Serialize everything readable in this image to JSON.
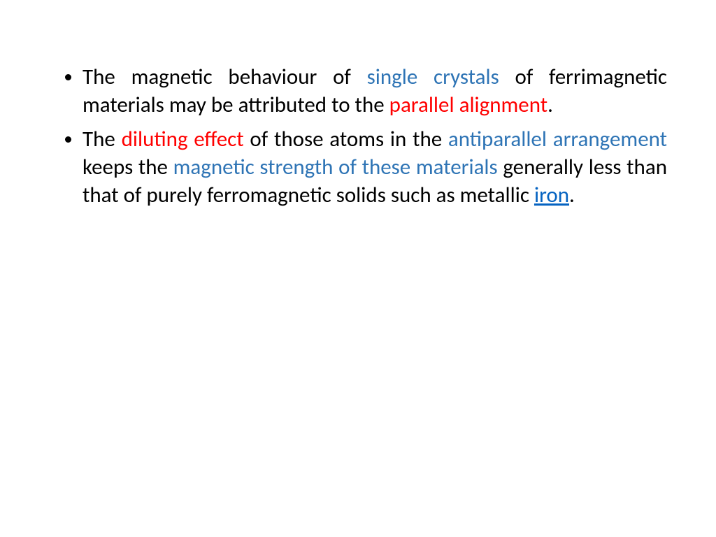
{
  "slide": {
    "background_color": "#ffffff",
    "font_family": "Calibri",
    "bullet_color": "#000000",
    "text_color": "#000000",
    "accent_blue": "#2e74b5",
    "accent_red": "#ff0000",
    "link_color": "#0563c1",
    "font_size_pt": 24,
    "text_align": "justify",
    "items": [
      {
        "runs": [
          {
            "text": "The magnetic behaviour of ",
            "color": "#000000"
          },
          {
            "text": "single crystals ",
            "color": "#2e74b5"
          },
          {
            "text": "of ferrimagnetic materials may be attributed to the ",
            "color": "#000000"
          },
          {
            "text": "parallel alignment",
            "color": "#ff0000"
          },
          {
            "text": ".",
            "color": "#000000"
          }
        ]
      },
      {
        "runs": [
          {
            "text": "The ",
            "color": "#000000"
          },
          {
            "text": "diluting effect ",
            "color": "#ff0000"
          },
          {
            "text": "of those atoms in the ",
            "color": "#000000"
          },
          {
            "text": "antiparallel arrangement ",
            "color": "#2e74b5"
          },
          {
            "text": "keeps the ",
            "color": "#000000"
          },
          {
            "text": "magnetic strength of these materials ",
            "color": "#2e74b5"
          },
          {
            "text": "generally less than that of purely ferromagnetic solids such as metallic ",
            "color": "#000000"
          },
          {
            "text": "iron",
            "color": "#0563c1",
            "link": true
          },
          {
            "text": ".",
            "color": "#000000"
          }
        ]
      }
    ]
  }
}
